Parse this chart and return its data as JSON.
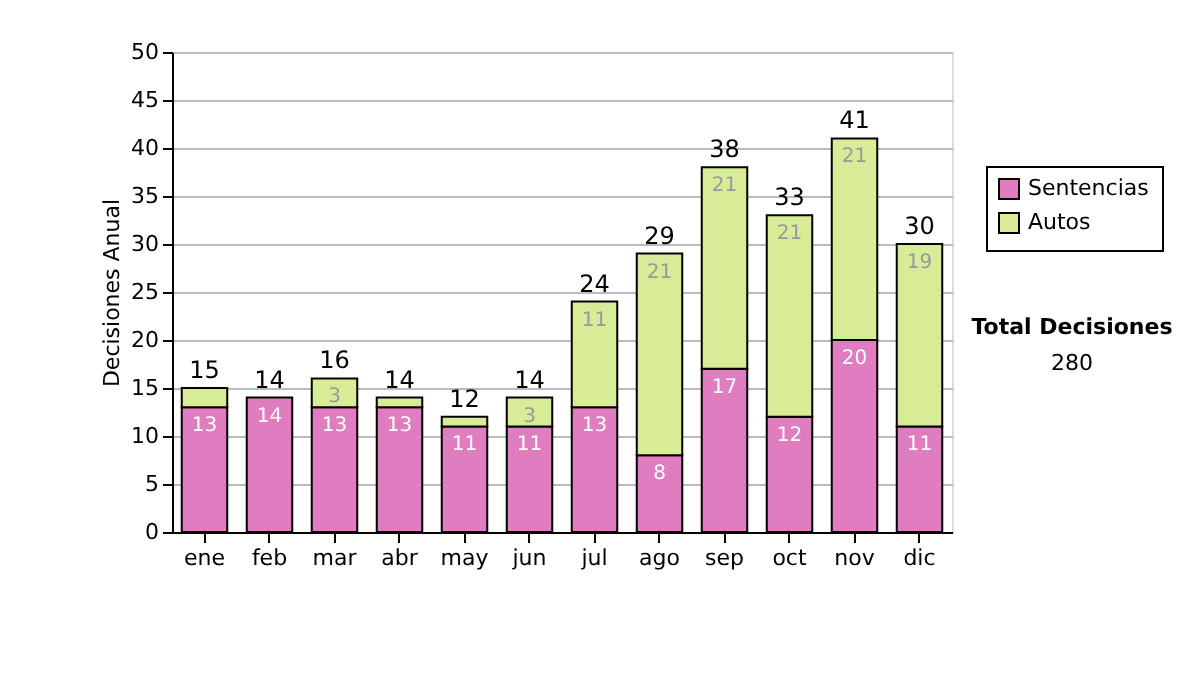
{
  "chart_data": {
    "type": "bar",
    "stacked": true,
    "ylabel": "Decisiones Anual",
    "categories": [
      "ene",
      "feb",
      "mar",
      "abr",
      "may",
      "jun",
      "jul",
      "ago",
      "sep",
      "oct",
      "nov",
      "dic"
    ],
    "series": [
      {
        "name": "Sentencias",
        "color": "#e07cc0",
        "values": [
          13,
          14,
          13,
          13,
          11,
          11,
          13,
          8,
          17,
          12,
          20,
          11
        ],
        "value_labels": [
          "13",
          "14",
          "13",
          "13",
          "11",
          "11",
          "13",
          "8",
          "17",
          "12",
          "20",
          "11"
        ]
      },
      {
        "name": "Autos",
        "color": "#d8ec98",
        "values": [
          2,
          null,
          3,
          1,
          1,
          3,
          11,
          21,
          21,
          21,
          21,
          19
        ],
        "value_labels": [
          null,
          null,
          "3",
          null,
          null,
          "3",
          "11",
          "21",
          "21",
          "21",
          "21",
          "19"
        ]
      }
    ],
    "totals": [
      "15",
      "14",
      "16",
      "14",
      "12",
      "14",
      "24",
      "29",
      "38",
      "33",
      "41",
      "30"
    ],
    "ylim": [
      0,
      50
    ],
    "yticks": [
      0,
      5,
      10,
      15,
      20,
      25,
      30,
      35,
      40,
      45,
      50
    ],
    "grid": "y",
    "legend": "right",
    "annotations": [
      "Total Decisiones",
      "280"
    ]
  }
}
